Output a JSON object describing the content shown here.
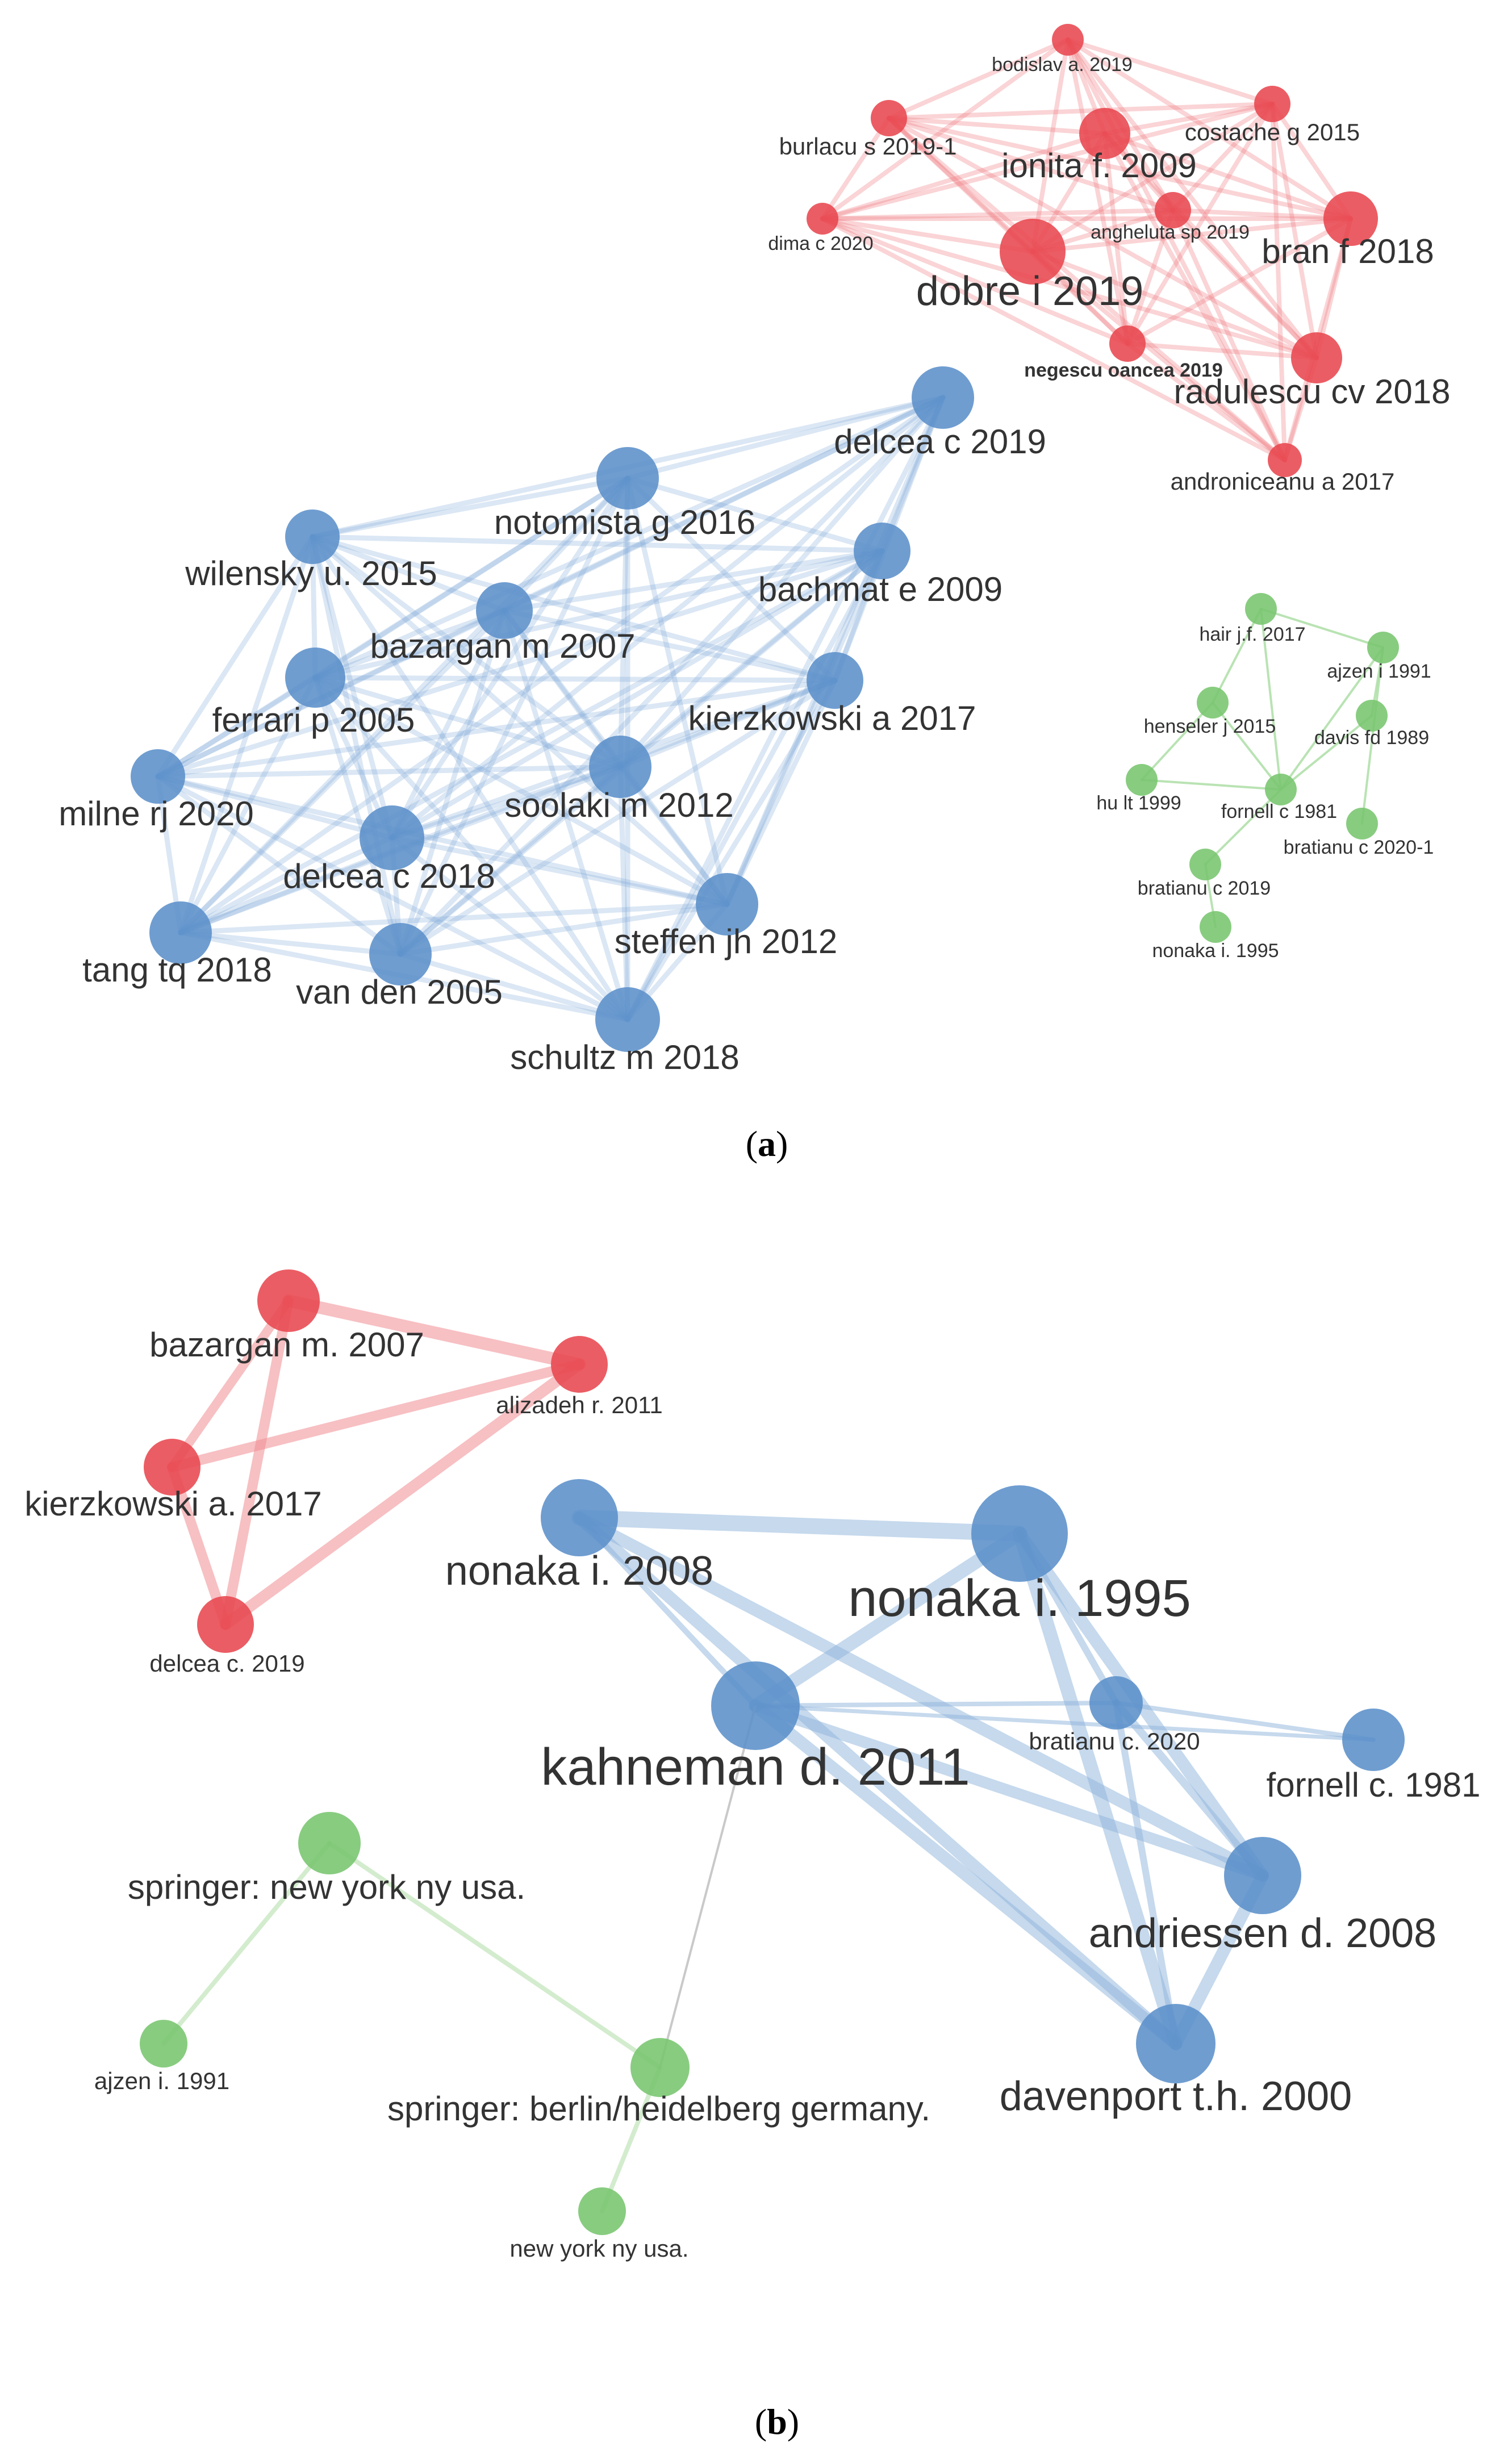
{
  "panels": [
    {
      "id": "a",
      "caption": "(a)",
      "caption_letter": "a",
      "clusters": [
        {
          "id": "red",
          "color": "#e8474f",
          "edge_color": "#ee7a80",
          "nodes": [
            {
              "id": "bodislav_2019",
              "label": "bodislav a. 2019",
              "weight": 1,
              "label_size": "small"
            },
            {
              "id": "burlacu_2019",
              "label": "burlacu s 2019-1",
              "weight": 1.3,
              "label_size": "medium"
            },
            {
              "id": "costache_2015",
              "label": "costache g 2015",
              "weight": 1.3,
              "label_size": "medium"
            },
            {
              "id": "ionita_2009",
              "label": "ionita f. 2009",
              "weight": 3,
              "label_size": "large"
            },
            {
              "id": "dima_2020",
              "label": "dima c 2020",
              "weight": 1.1,
              "label_size": "small"
            },
            {
              "id": "angheluta_2019",
              "label": "angheluta sp 2019",
              "weight": 1.3,
              "label_size": "small"
            },
            {
              "id": "bran_2018",
              "label": "bran f 2018",
              "weight": 3,
              "label_size": "large"
            },
            {
              "id": "dobre_2019",
              "label": "dobre i 2019",
              "weight": 4,
              "label_size": "xlarge"
            },
            {
              "id": "negescu_2019",
              "label": "negescu oancea 2019",
              "weight": 1.5,
              "label_size": "small"
            },
            {
              "id": "radulescu_2018",
              "label": "radulescu cv 2018",
              "weight": 3,
              "label_size": "large"
            },
            {
              "id": "androniceanu_2017",
              "label": "androniceanu a 2017",
              "weight": 1.1,
              "label_size": "medium"
            }
          ]
        },
        {
          "id": "blue",
          "color": "#5b8fc9",
          "edge_color": "#7eaad8",
          "nodes": [
            {
              "id": "delcea_2019",
              "label": "delcea c 2019",
              "weight": 3,
              "label_size": "large"
            },
            {
              "id": "notomista_2016",
              "label": "notomista g 2016",
              "weight": 3,
              "label_size": "large"
            },
            {
              "id": "wilensky_2015",
              "label": "wilensky u. 2015",
              "weight": 2.5,
              "label_size": "large"
            },
            {
              "id": "bachmat_2009",
              "label": "bachmat e 2009",
              "weight": 2.5,
              "label_size": "large"
            },
            {
              "id": "bazargan_2007",
              "label": "bazargan m 2007",
              "weight": 2.5,
              "label_size": "large"
            },
            {
              "id": "ferrari_2005",
              "label": "ferrari p 2005",
              "weight": 3,
              "label_size": "large"
            },
            {
              "id": "kierzkowski_2017",
              "label": "kierzkowski a 2017",
              "weight": 2.5,
              "label_size": "large"
            },
            {
              "id": "milne_2020",
              "label": "milne rj 2020",
              "weight": 2.5,
              "label_size": "large"
            },
            {
              "id": "soolaki_2012",
              "label": "soolaki m 2012",
              "weight": 3,
              "label_size": "large"
            },
            {
              "id": "delcea_2018",
              "label": "delcea c 2018",
              "weight": 3.5,
              "label_size": "large"
            },
            {
              "id": "steffen_2012",
              "label": "steffen jh 2012",
              "weight": 3,
              "label_size": "large"
            },
            {
              "id": "tang_2018",
              "label": "tang tq 2018",
              "weight": 3,
              "label_size": "large"
            },
            {
              "id": "van_den_2005",
              "label": "van den 2005",
              "weight": 3,
              "label_size": "large"
            },
            {
              "id": "schultz_2018",
              "label": "schultz m 2018",
              "weight": 3,
              "label_size": "large"
            }
          ]
        },
        {
          "id": "green",
          "color": "#78c56e",
          "edge_color": "#a8dca0",
          "nodes": [
            {
              "id": "hair_2017",
              "label": "hair j.f. 2017",
              "weight": 1,
              "label_size": "small"
            },
            {
              "id": "ajzen_1991",
              "label": "ajzen i 1991",
              "weight": 1,
              "label_size": "small"
            },
            {
              "id": "henseler_2015",
              "label": "henseler j 2015",
              "weight": 1,
              "label_size": "small"
            },
            {
              "id": "davis_1989",
              "label": "davis fd 1989",
              "weight": 1,
              "label_size": "small"
            },
            {
              "id": "hu_1999",
              "label": "hu lt 1999",
              "weight": 1,
              "label_size": "small"
            },
            {
              "id": "fornell_1981",
              "label": "fornell c 1981",
              "weight": 1,
              "label_size": "small"
            },
            {
              "id": "bratianu_2020",
              "label": "bratianu c 2020-1",
              "weight": 1,
              "label_size": "small"
            },
            {
              "id": "bratianu_2019",
              "label": "bratianu c 2019",
              "weight": 1,
              "label_size": "small"
            },
            {
              "id": "nonaka_1995",
              "label": "nonaka i. 1995",
              "weight": 1,
              "label_size": "small"
            }
          ]
        }
      ]
    },
    {
      "id": "b",
      "caption": "(b)",
      "caption_letter": "b",
      "clusters": [
        {
          "id": "red",
          "color": "#e8474f",
          "edge_color": "#f08d92",
          "nodes": [
            {
              "id": "bazargan_2007",
              "label": "bazargan m. 2007",
              "weight": 2,
              "label_size": "large"
            },
            {
              "id": "alizadeh_2011",
              "label": "alizadeh r. 2011",
              "weight": 1.8,
              "label_size": "medium"
            },
            {
              "id": "kierzkowski_2017",
              "label": "kierzkowski a. 2017",
              "weight": 1.8,
              "label_size": "large"
            },
            {
              "id": "delcea_2019",
              "label": "delcea c. 2019",
              "weight": 1.8,
              "label_size": "medium"
            }
          ]
        },
        {
          "id": "blue",
          "color": "#5b8fc9",
          "edge_color": "#8db3dc",
          "nodes": [
            {
              "id": "nonaka_2008",
              "label": "nonaka i. 2008",
              "weight": 3,
              "label_size": "xlarge"
            },
            {
              "id": "nonaka_1995",
              "label": "nonaka i. 1995",
              "weight": 5,
              "label_size": "xxlarge"
            },
            {
              "id": "kahneman_2011",
              "label": "kahneman d. 2011",
              "weight": 4.5,
              "label_size": "xxlarge"
            },
            {
              "id": "bratianu_2020",
              "label": "bratianu c. 2020",
              "weight": 2,
              "label_size": "medium"
            },
            {
              "id": "fornell_1981",
              "label": "fornell c. 1981",
              "weight": 2.4,
              "label_size": "large"
            },
            {
              "id": "andriessen_2008",
              "label": "andriessen d. 2008",
              "weight": 3,
              "label_size": "xlarge"
            },
            {
              "id": "davenport_2000",
              "label": "davenport t.h. 2000",
              "weight": 3.5,
              "label_size": "xlarge"
            }
          ]
        },
        {
          "id": "green",
          "color": "#78c56e",
          "edge_color": "#b5e0ae",
          "nodes": [
            {
              "id": "springer_ny",
              "label": "springer: new york ny usa.",
              "weight": 2,
              "label_size": "large"
            },
            {
              "id": "ajzen_1991",
              "label": "ajzen i. 1991",
              "weight": 1.6,
              "label_size": "medium"
            },
            {
              "id": "springer_berlin",
              "label": "springer: berlin/heidelberg germany.",
              "weight": 2,
              "label_size": "large"
            },
            {
              "id": "new_york_ny",
              "label": "new york ny usa.",
              "weight": 1.6,
              "label_size": "medium"
            }
          ]
        }
      ]
    }
  ]
}
